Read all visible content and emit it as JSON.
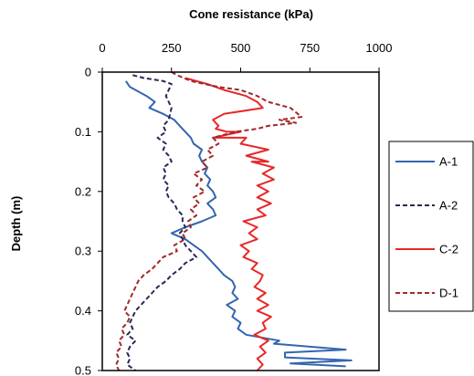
{
  "chart_data": {
    "type": "line",
    "xlabel": "Cone resistance (kPa)",
    "ylabel": "Depth (m)",
    "xlim": [
      0,
      1000
    ],
    "ylim": [
      0,
      0.5
    ],
    "x_axis_position": "top",
    "y_axis_inverted": true,
    "x_ticks": [
      "0",
      "250",
      "500",
      "750",
      "1000"
    ],
    "y_ticks": [
      "0",
      "0.1",
      "0.2",
      "0.3",
      "0.4",
      "0.5"
    ],
    "grid": false,
    "legend_position": "right",
    "series": [
      {
        "name": "A-1",
        "color": "#3465b0",
        "dash": "solid",
        "points": [
          [
            85,
            0.015
          ],
          [
            100,
            0.025
          ],
          [
            120,
            0.03
          ],
          [
            160,
            0.04
          ],
          [
            190,
            0.05
          ],
          [
            170,
            0.06
          ],
          [
            220,
            0.07
          ],
          [
            260,
            0.08
          ],
          [
            280,
            0.09
          ],
          [
            300,
            0.1
          ],
          [
            320,
            0.11
          ],
          [
            330,
            0.12
          ],
          [
            360,
            0.13
          ],
          [
            350,
            0.14
          ],
          [
            360,
            0.15
          ],
          [
            380,
            0.16
          ],
          [
            370,
            0.17
          ],
          [
            390,
            0.18
          ],
          [
            380,
            0.19
          ],
          [
            400,
            0.2
          ],
          [
            410,
            0.21
          ],
          [
            380,
            0.22
          ],
          [
            400,
            0.23
          ],
          [
            410,
            0.24
          ],
          [
            360,
            0.25
          ],
          [
            300,
            0.26
          ],
          [
            250,
            0.27
          ],
          [
            300,
            0.28
          ],
          [
            330,
            0.29
          ],
          [
            360,
            0.3
          ],
          [
            380,
            0.31
          ],
          [
            400,
            0.32
          ],
          [
            420,
            0.33
          ],
          [
            440,
            0.34
          ],
          [
            470,
            0.35
          ],
          [
            480,
            0.36
          ],
          [
            470,
            0.37
          ],
          [
            490,
            0.38
          ],
          [
            450,
            0.39
          ],
          [
            480,
            0.4
          ],
          [
            470,
            0.41
          ],
          [
            500,
            0.42
          ],
          [
            490,
            0.43
          ],
          [
            520,
            0.44
          ],
          [
            640,
            0.45
          ],
          [
            620,
            0.455
          ],
          [
            880,
            0.465
          ],
          [
            660,
            0.47
          ],
          [
            660,
            0.478
          ],
          [
            900,
            0.483
          ],
          [
            680,
            0.488
          ],
          [
            880,
            0.493
          ]
        ]
      },
      {
        "name": "A-2",
        "color": "#28285a",
        "dash": "dashed",
        "points": [
          [
            110,
            0.005
          ],
          [
            150,
            0.01
          ],
          [
            220,
            0.015
          ],
          [
            250,
            0.02
          ],
          [
            240,
            0.03
          ],
          [
            230,
            0.04
          ],
          [
            250,
            0.06
          ],
          [
            240,
            0.08
          ],
          [
            220,
            0.09
          ],
          [
            230,
            0.1
          ],
          [
            200,
            0.11
          ],
          [
            230,
            0.12
          ],
          [
            220,
            0.13
          ],
          [
            240,
            0.14
          ],
          [
            250,
            0.15
          ],
          [
            220,
            0.16
          ],
          [
            230,
            0.17
          ],
          [
            220,
            0.18
          ],
          [
            240,
            0.19
          ],
          [
            230,
            0.2
          ],
          [
            240,
            0.21
          ],
          [
            260,
            0.22
          ],
          [
            270,
            0.23
          ],
          [
            290,
            0.24
          ],
          [
            290,
            0.25
          ],
          [
            300,
            0.26
          ],
          [
            280,
            0.27
          ],
          [
            290,
            0.28
          ],
          [
            300,
            0.29
          ],
          [
            320,
            0.3
          ],
          [
            340,
            0.31
          ],
          [
            300,
            0.32
          ],
          [
            280,
            0.33
          ],
          [
            250,
            0.34
          ],
          [
            230,
            0.35
          ],
          [
            200,
            0.36
          ],
          [
            180,
            0.37
          ],
          [
            160,
            0.38
          ],
          [
            140,
            0.39
          ],
          [
            120,
            0.4
          ],
          [
            110,
            0.41
          ],
          [
            100,
            0.42
          ],
          [
            110,
            0.43
          ],
          [
            90,
            0.44
          ],
          [
            120,
            0.45
          ],
          [
            100,
            0.46
          ],
          [
            90,
            0.47
          ],
          [
            100,
            0.48
          ],
          [
            90,
            0.49
          ],
          [
            120,
            0.5
          ]
        ]
      },
      {
        "name": "C-2",
        "color": "#e8282a",
        "dash": "solid",
        "points": [
          [
            300,
            0.01
          ],
          [
            380,
            0.02
          ],
          [
            440,
            0.03
          ],
          [
            520,
            0.04
          ],
          [
            560,
            0.05
          ],
          [
            580,
            0.06
          ],
          [
            440,
            0.07
          ],
          [
            400,
            0.08
          ],
          [
            420,
            0.09
          ],
          [
            410,
            0.095
          ],
          [
            450,
            0.1
          ],
          [
            500,
            0.1
          ],
          [
            400,
            0.11
          ],
          [
            520,
            0.11
          ],
          [
            500,
            0.12
          ],
          [
            600,
            0.13
          ],
          [
            520,
            0.14
          ],
          [
            600,
            0.15
          ],
          [
            540,
            0.15
          ],
          [
            620,
            0.16
          ],
          [
            580,
            0.17
          ],
          [
            620,
            0.18
          ],
          [
            560,
            0.19
          ],
          [
            600,
            0.2
          ],
          [
            560,
            0.21
          ],
          [
            610,
            0.22
          ],
          [
            560,
            0.23
          ],
          [
            590,
            0.24
          ],
          [
            510,
            0.25
          ],
          [
            560,
            0.26
          ],
          [
            530,
            0.27
          ],
          [
            560,
            0.28
          ],
          [
            500,
            0.29
          ],
          [
            530,
            0.3
          ],
          [
            510,
            0.31
          ],
          [
            560,
            0.32
          ],
          [
            540,
            0.33
          ],
          [
            580,
            0.34
          ],
          [
            570,
            0.35
          ],
          [
            550,
            0.36
          ],
          [
            590,
            0.37
          ],
          [
            560,
            0.38
          ],
          [
            600,
            0.39
          ],
          [
            560,
            0.4
          ],
          [
            610,
            0.41
          ],
          [
            580,
            0.42
          ],
          [
            590,
            0.43
          ],
          [
            550,
            0.44
          ],
          [
            600,
            0.45
          ],
          [
            570,
            0.46
          ],
          [
            590,
            0.47
          ],
          [
            560,
            0.48
          ],
          [
            580,
            0.49
          ],
          [
            560,
            0.5
          ]
        ]
      },
      {
        "name": "D-1",
        "color": "#9e2a2b",
        "dash": "dashed",
        "points": [
          [
            250,
            0.0
          ],
          [
            270,
            0.005
          ],
          [
            320,
            0.015
          ],
          [
            420,
            0.025
          ],
          [
            500,
            0.03
          ],
          [
            560,
            0.04
          ],
          [
            600,
            0.05
          ],
          [
            680,
            0.06
          ],
          [
            720,
            0.075
          ],
          [
            640,
            0.08
          ],
          [
            700,
            0.085
          ],
          [
            600,
            0.09
          ],
          [
            560,
            0.095
          ],
          [
            480,
            0.1
          ],
          [
            400,
            0.11
          ],
          [
            420,
            0.12
          ],
          [
            380,
            0.13
          ],
          [
            400,
            0.14
          ],
          [
            360,
            0.15
          ],
          [
            380,
            0.16
          ],
          [
            330,
            0.17
          ],
          [
            360,
            0.18
          ],
          [
            340,
            0.19
          ],
          [
            370,
            0.2
          ],
          [
            330,
            0.21
          ],
          [
            350,
            0.22
          ],
          [
            320,
            0.23
          ],
          [
            340,
            0.24
          ],
          [
            310,
            0.25
          ],
          [
            320,
            0.26
          ],
          [
            290,
            0.27
          ],
          [
            300,
            0.28
          ],
          [
            260,
            0.29
          ],
          [
            270,
            0.3
          ],
          [
            220,
            0.31
          ],
          [
            200,
            0.32
          ],
          [
            180,
            0.33
          ],
          [
            150,
            0.34
          ],
          [
            130,
            0.35
          ],
          [
            120,
            0.36
          ],
          [
            110,
            0.37
          ],
          [
            100,
            0.38
          ],
          [
            90,
            0.39
          ],
          [
            80,
            0.4
          ],
          [
            100,
            0.41
          ],
          [
            90,
            0.42
          ],
          [
            70,
            0.43
          ],
          [
            80,
            0.44
          ],
          [
            60,
            0.45
          ],
          [
            70,
            0.46
          ],
          [
            50,
            0.47
          ],
          [
            60,
            0.48
          ],
          [
            50,
            0.49
          ],
          [
            60,
            0.5
          ]
        ]
      }
    ]
  }
}
